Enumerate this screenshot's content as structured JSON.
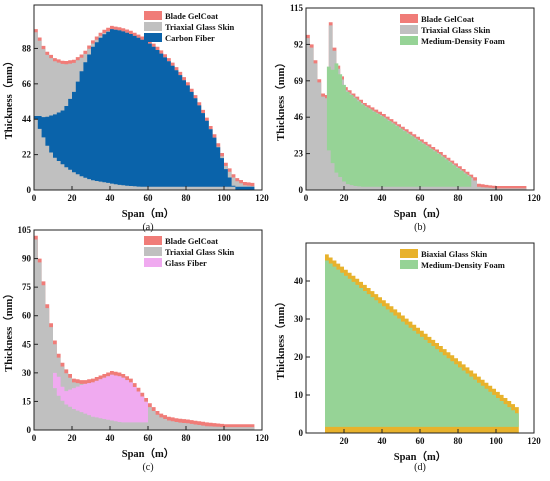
{
  "chart_data": [
    {
      "type": "area",
      "panel_label": "(a)",
      "xlabel": "Span（m）",
      "ylabel": "Thickness（mm）",
      "xlim": [
        0,
        120
      ],
      "ylim": [
        0,
        115
      ],
      "xticks": [
        0,
        20,
        40,
        60,
        80,
        100,
        120
      ],
      "yticks": [
        0,
        22,
        44,
        66,
        88
      ],
      "legend_position": "top-right",
      "series": [
        {
          "name": "Blade GelCoat",
          "color": "#f07c78",
          "x": [
            0,
            5,
            10,
            15,
            20,
            25,
            30,
            35,
            40,
            45,
            50,
            55,
            60,
            65,
            70,
            75,
            80,
            85,
            90,
            95,
            100,
            105,
            110,
            117
          ],
          "values": [
            100,
            87,
            82,
            80,
            81,
            85,
            93,
            99,
            102,
            101,
            99,
            96,
            93,
            88,
            82,
            75,
            67,
            57,
            45,
            32,
            17,
            8,
            5,
            4
          ]
        },
        {
          "name": "Triaxial Glass Skin",
          "color": "#c0c0c0",
          "x": [
            0,
            5,
            10,
            15,
            20,
            25,
            30,
            35,
            40,
            45,
            50,
            55,
            60,
            65,
            70,
            75,
            80,
            85,
            90,
            95,
            100,
            105,
            110,
            117
          ],
          "values": [
            98,
            85,
            80,
            78,
            79,
            83,
            91,
            97,
            100,
            99,
            97,
            94,
            91,
            86,
            80,
            73,
            65,
            55,
            43,
            30,
            15,
            6,
            3,
            2
          ]
        },
        {
          "name": "Carbon Fiber",
          "color": "#0a63aa",
          "x": [
            0,
            2,
            5,
            7,
            10,
            15,
            20,
            25,
            30,
            35,
            40,
            45,
            50,
            55,
            60,
            65,
            70,
            75,
            80,
            85,
            90,
            95,
            100,
            105,
            110,
            117
          ],
          "base": [
            44,
            38,
            30,
            25,
            20,
            15,
            11,
            8,
            6,
            5,
            4,
            3,
            2.5,
            2,
            2,
            2,
            2,
            2,
            2,
            2,
            2,
            2,
            2,
            2,
            2,
            2
          ],
          "values": [
            46,
            46,
            45,
            46,
            47,
            50,
            61,
            77,
            89,
            96,
            100,
            99,
            97,
            94,
            91,
            86,
            80,
            73,
            65,
            55,
            43,
            30,
            13,
            0,
            0,
            0
          ]
        }
      ]
    },
    {
      "type": "area",
      "panel_label": "(b)",
      "xlabel": "Span（m）",
      "ylabel": "Thickness（mm）",
      "xlim": [
        0,
        120
      ],
      "ylim": [
        0,
        115
      ],
      "xticks": [
        0,
        20,
        40,
        60,
        80,
        100,
        120
      ],
      "yticks": [
        0,
        23,
        46,
        69,
        92,
        115
      ],
      "legend_position": "top-right",
      "series": [
        {
          "name": "Blade GelCoat",
          "color": "#f07c78",
          "x": [
            0,
            2,
            4,
            6,
            8,
            10,
            11,
            12,
            15,
            20,
            25,
            30,
            40,
            50,
            60,
            70,
            80,
            88,
            90,
            95,
            100,
            110,
            117
          ],
          "values": [
            98,
            92,
            82,
            70,
            61,
            60,
            111,
            106,
            82,
            65,
            60,
            55,
            48,
            40,
            32,
            24,
            15,
            8,
            4,
            3,
            2.5,
            2.5,
            2.5
          ]
        },
        {
          "name": "Triaxial Glass Skin",
          "color": "#c0c0c0",
          "x": [
            0,
            2,
            4,
            6,
            8,
            10,
            11,
            12,
            15,
            20,
            25,
            30,
            40,
            50,
            60,
            70,
            80,
            88,
            90,
            95,
            100,
            110,
            117
          ],
          "values": [
            96,
            90,
            80,
            68,
            59,
            58,
            109,
            104,
            80,
            63,
            58,
            53,
            46,
            38,
            30,
            22,
            13,
            6,
            2,
            1.5,
            1,
            1,
            1
          ]
        },
        {
          "name": "Medium-Density Foam",
          "color": "#96d396",
          "x": [
            11,
            12,
            15,
            20,
            25,
            30,
            40,
            50,
            60,
            70,
            80,
            88
          ],
          "base": [
            25,
            20,
            11,
            4,
            2.5,
            2,
            2,
            2,
            2,
            2,
            2,
            2
          ],
          "values": [
            78,
            74,
            80,
            63,
            58,
            53,
            46,
            38,
            30,
            22,
            13,
            6
          ]
        }
      ]
    },
    {
      "type": "area",
      "panel_label": "(c)",
      "xlabel": "Span（m）",
      "ylabel": "Thickness（mm）",
      "xlim": [
        0,
        120
      ],
      "ylim": [
        0,
        105
      ],
      "xticks": [
        0,
        20,
        40,
        60,
        80,
        100,
        120
      ],
      "yticks": [
        0,
        15,
        30,
        45,
        60,
        75,
        90,
        105
      ],
      "legend_position": "top-right",
      "series": [
        {
          "name": "Blade GelCoat",
          "color": "#f07c78",
          "x": [
            0,
            2,
            4,
            6,
            8,
            10,
            12,
            15,
            20,
            25,
            30,
            35,
            40,
            45,
            50,
            55,
            60,
            65,
            70,
            75,
            80,
            90,
            100,
            110,
            117
          ],
          "values": [
            102,
            90,
            78,
            66,
            56,
            47,
            40,
            33,
            27,
            26,
            27,
            29,
            31,
            30,
            27,
            21,
            14,
            9,
            7,
            6,
            5.5,
            4,
            3,
            3,
            3
          ]
        },
        {
          "name": "Triaxial Glass Skin",
          "color": "#c0c0c0",
          "x": [
            0,
            2,
            4,
            6,
            8,
            10,
            12,
            15,
            20,
            25,
            30,
            35,
            40,
            45,
            50,
            55,
            60,
            65,
            70,
            75,
            80,
            90,
            100,
            110,
            117
          ],
          "values": [
            100,
            88,
            76,
            64,
            54,
            45,
            38,
            31,
            25,
            24,
            25,
            27,
            29,
            28,
            25,
            19,
            12,
            7,
            5,
            4,
            3.5,
            2,
            1.5,
            1.5,
            1.5
          ]
        },
        {
          "name": "Glass Fiber",
          "color": "#f0aaf0",
          "x": [
            10,
            12,
            15,
            20,
            25,
            30,
            35,
            40,
            45,
            50,
            55,
            60
          ],
          "base": [
            22,
            18,
            14,
            11,
            9,
            7,
            6,
            5,
            4,
            4,
            4,
            4
          ],
          "values": [
            30,
            28,
            20,
            22,
            24,
            25,
            27,
            29,
            28,
            25,
            19,
            12
          ]
        }
      ]
    },
    {
      "type": "area",
      "panel_label": "(d)",
      "xlabel": "Span（m）",
      "ylabel": "Thickness（mm）",
      "xlim": [
        0,
        120
      ],
      "ylim": [
        0,
        50
      ],
      "xticks": [
        20,
        40,
        60,
        80,
        100,
        120
      ],
      "yticks": [
        0,
        10,
        20,
        30,
        40
      ],
      "legend_position": "top-right",
      "series": [
        {
          "name": "Biaxial Glass Skin",
          "color": "#e8b22c",
          "x": [
            10,
            112
          ],
          "values": [
            47,
            6
          ]
        },
        {
          "name": "Medium-Density Foam",
          "color": "#96d396",
          "x": [
            10,
            112
          ],
          "base": [
            1.6,
            1.6
          ],
          "values": [
            45.4,
            4.4
          ]
        }
      ]
    }
  ]
}
